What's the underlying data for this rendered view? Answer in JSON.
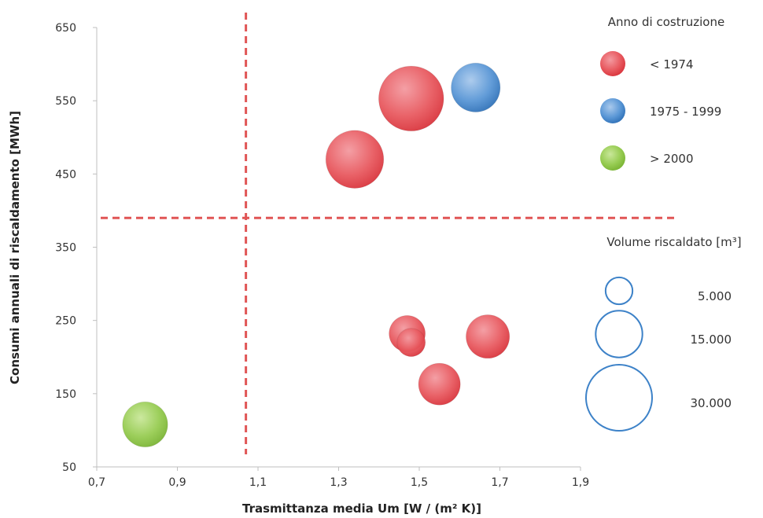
{
  "chart_data": {
    "type": "bubble",
    "title": "",
    "xlabel": "Trasmittanza media Um [W / (m² K)]",
    "ylabel": "Consumi annuali di riscaldamento [MWh]",
    "xlim": [
      0.7,
      1.9
    ],
    "ylim": [
      50,
      650
    ],
    "x_ticks": [
      "0,7",
      "0,9",
      "1,1",
      "1,3",
      "1,5",
      "1,7",
      "1,9"
    ],
    "y_ticks": [
      "50",
      "150",
      "250",
      "350",
      "450",
      "550",
      "650"
    ],
    "threshold_x": 1.07,
    "threshold_y": 390,
    "threshold_color": "#e05555",
    "points": [
      {
        "x": 1.48,
        "y": 553,
        "volume": 29000,
        "group": "< 1974"
      },
      {
        "x": 1.34,
        "y": 470,
        "volume": 23000,
        "group": "< 1974"
      },
      {
        "x": 1.64,
        "y": 568,
        "volume": 16500,
        "group": "1975 - 1999"
      },
      {
        "x": 1.47,
        "y": 232,
        "volume": 9000,
        "group": "< 1974"
      },
      {
        "x": 1.48,
        "y": 220,
        "volume": 5500,
        "group": "< 1974"
      },
      {
        "x": 1.67,
        "y": 228,
        "volume": 13000,
        "group": "< 1974"
      },
      {
        "x": 1.55,
        "y": 163,
        "volume": 12000,
        "group": "< 1974"
      },
      {
        "x": 0.82,
        "y": 108,
        "volume": 14000,
        "group": "> 2000"
      }
    ],
    "legend_color": {
      "title": "Anno di costruzione",
      "items": [
        {
          "label": "< 1974",
          "color": "#e8474d"
        },
        {
          "label": "1975 - 1999",
          "color": "#3d82c8"
        },
        {
          "label": "> 2000",
          "color": "#8cc63f"
        }
      ]
    },
    "legend_size": {
      "title": "Volume riscaldato [m³]",
      "items": [
        {
          "label": "5.000",
          "volume": 5000
        },
        {
          "label": "15.000",
          "volume": 15000
        },
        {
          "label": "30.000",
          "volume": 30000
        }
      ],
      "stroke_color": "#3d82c8"
    }
  }
}
